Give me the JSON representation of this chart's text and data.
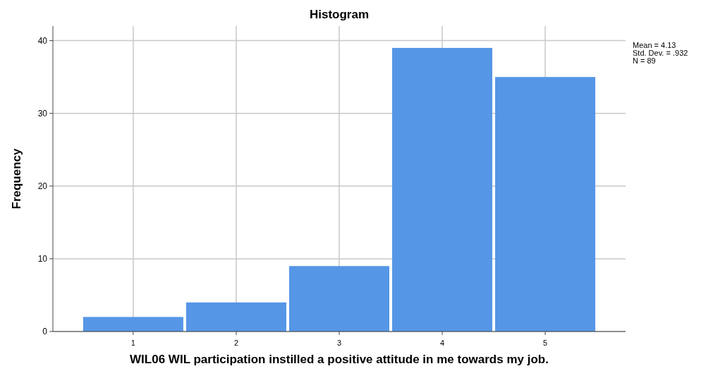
{
  "chart_data": {
    "type": "histogram",
    "title": "Histogram",
    "xlabel": "WIL06 WIL participation instilled a positive attitude in me towards my job.",
    "ylabel": "Frequency",
    "bins": [
      0.5,
      1.5,
      2.5,
      3.5,
      4.5,
      5.5
    ],
    "values": [
      2,
      4,
      9,
      39,
      35
    ],
    "color": "#5596e6",
    "xlim": [
      0.22,
      5.78
    ],
    "xticks": [
      1,
      2,
      3,
      4,
      5
    ],
    "ylim": [
      0,
      42
    ],
    "yticks": [
      0,
      10,
      20,
      30,
      40
    ],
    "grid": true,
    "annotations": [
      "Mean = 4.13",
      "Std. Dev. = .932",
      "N = 89"
    ]
  }
}
